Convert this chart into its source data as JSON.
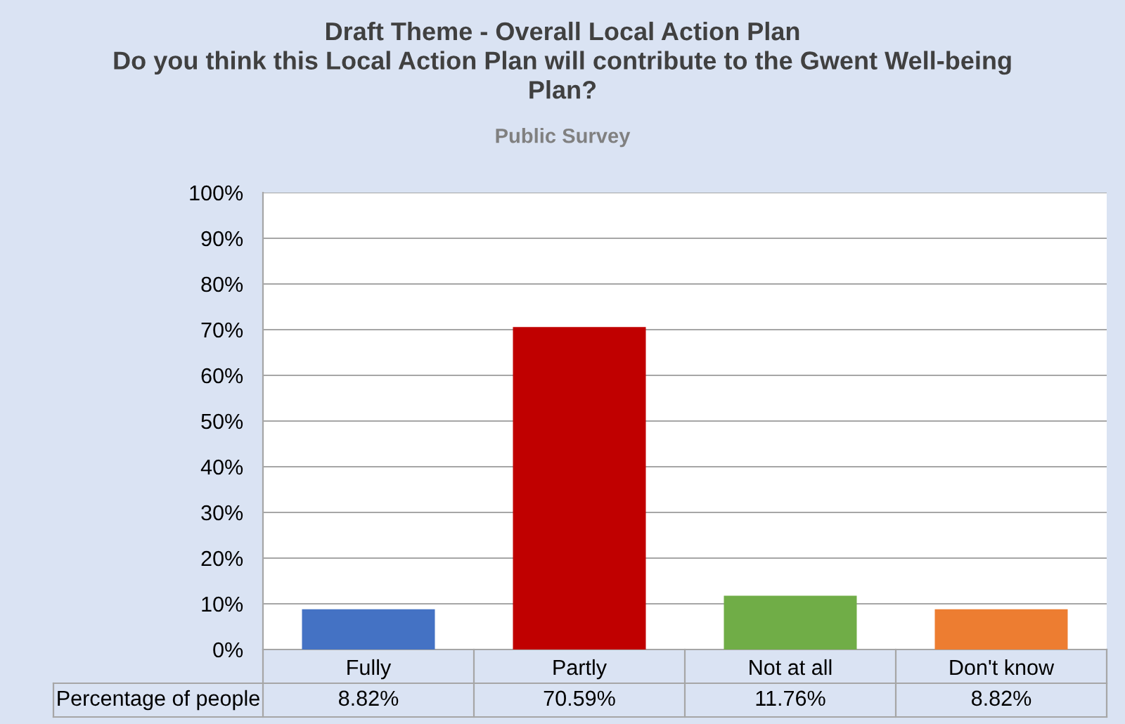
{
  "chart_data": {
    "type": "bar",
    "title": "Draft Theme - Overall Local Action Plan\nDo you think this Local Action Plan will contribute to the Gwent Well-being\nPlan?",
    "subtitle": "Public Survey",
    "categories": [
      "Fully",
      "Partly",
      "Not at all",
      "Don't know"
    ],
    "series": [
      {
        "name": "Percentage of people",
        "values": [
          8.82,
          70.59,
          11.76,
          8.82
        ],
        "colors": [
          "#4472c4",
          "#c00000",
          "#70ad47",
          "#ed7d31"
        ],
        "value_labels": [
          "8.82%",
          "70.59%",
          "11.76%",
          "8.82%"
        ]
      }
    ],
    "ylim": [
      0,
      100
    ],
    "yticks": [
      {
        "value": 0,
        "label": "0%"
      },
      {
        "value": 10,
        "label": "10%"
      },
      {
        "value": 20,
        "label": "20%"
      },
      {
        "value": 30,
        "label": "30%"
      },
      {
        "value": 40,
        "label": "40%"
      },
      {
        "value": 50,
        "label": "50%"
      },
      {
        "value": 60,
        "label": "60%"
      },
      {
        "value": 70,
        "label": "70%"
      },
      {
        "value": 80,
        "label": "80%"
      },
      {
        "value": 90,
        "label": "90%"
      },
      {
        "value": 100,
        "label": "100%"
      }
    ],
    "grid": "y"
  }
}
